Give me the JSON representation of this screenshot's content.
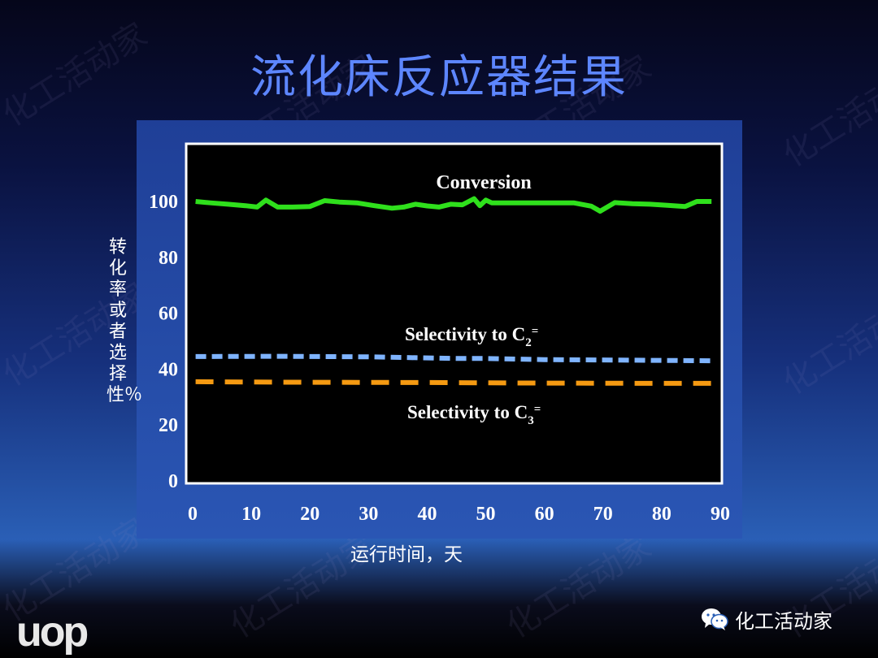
{
  "slide": {
    "title": "流化床反应器结果",
    "logo": "uop",
    "brand": "化工活动家",
    "watermark": "化工活动家"
  },
  "chart_data": {
    "type": "line",
    "title": "",
    "xlabel": "运行时间，天",
    "ylabel": "转化率或者选择性％",
    "xlim": [
      0,
      90
    ],
    "ylim": [
      0,
      120
    ],
    "x_ticks": [
      0,
      10,
      20,
      30,
      40,
      50,
      60,
      70,
      80,
      90
    ],
    "y_ticks": [
      0,
      20,
      40,
      60,
      80,
      100
    ],
    "grid": false,
    "annotations": {
      "conversion": "Conversion",
      "c2_prefix": "Selectivity to C",
      "c2_sub": "2",
      "c2_sup": "=",
      "c3_prefix": "Selectivity to C",
      "c3_sub": "3",
      "c3_sup": "="
    },
    "series": [
      {
        "name": "Conversion",
        "color": "#2fe01c",
        "style": "solid",
        "x": [
          0.5,
          3,
          6,
          9,
          11,
          12.5,
          14.5,
          17,
          20,
          22.5,
          25,
          28,
          31,
          34,
          36,
          38,
          40,
          42,
          44,
          46,
          48,
          49,
          50,
          51,
          53,
          56,
          59,
          62,
          65,
          68,
          69.5,
          72,
          75,
          78,
          81,
          84,
          86,
          88.5
        ],
        "y": [
          100,
          99.5,
          99,
          98.5,
          98,
          100.5,
          98,
          98,
          98.2,
          100.3,
          99.8,
          99.5,
          98.5,
          97.6,
          98,
          99,
          98.4,
          98,
          99,
          98.8,
          101,
          98.5,
          100.5,
          99.5,
          99.5,
          99.5,
          99.5,
          99.5,
          99.5,
          98.3,
          96.5,
          99.6,
          99.2,
          99,
          98.6,
          98.2,
          100,
          100
        ]
      },
      {
        "name": "Selectivity to C2=",
        "color": "#7fb4ff",
        "style": "dashed",
        "x": [
          0.5,
          15,
          30,
          45,
          50,
          60,
          75,
          88.5
        ],
        "y": [
          44.5,
          44.6,
          44.4,
          43.8,
          43.8,
          43.4,
          43.2,
          43.0
        ]
      },
      {
        "name": "Selectivity to C3=",
        "color": "#f59a12",
        "style": "dashed",
        "x": [
          0.5,
          20,
          40,
          60,
          80,
          88.5
        ],
        "y": [
          35.5,
          35.3,
          35.2,
          35.0,
          34.9,
          34.9
        ]
      }
    ]
  }
}
